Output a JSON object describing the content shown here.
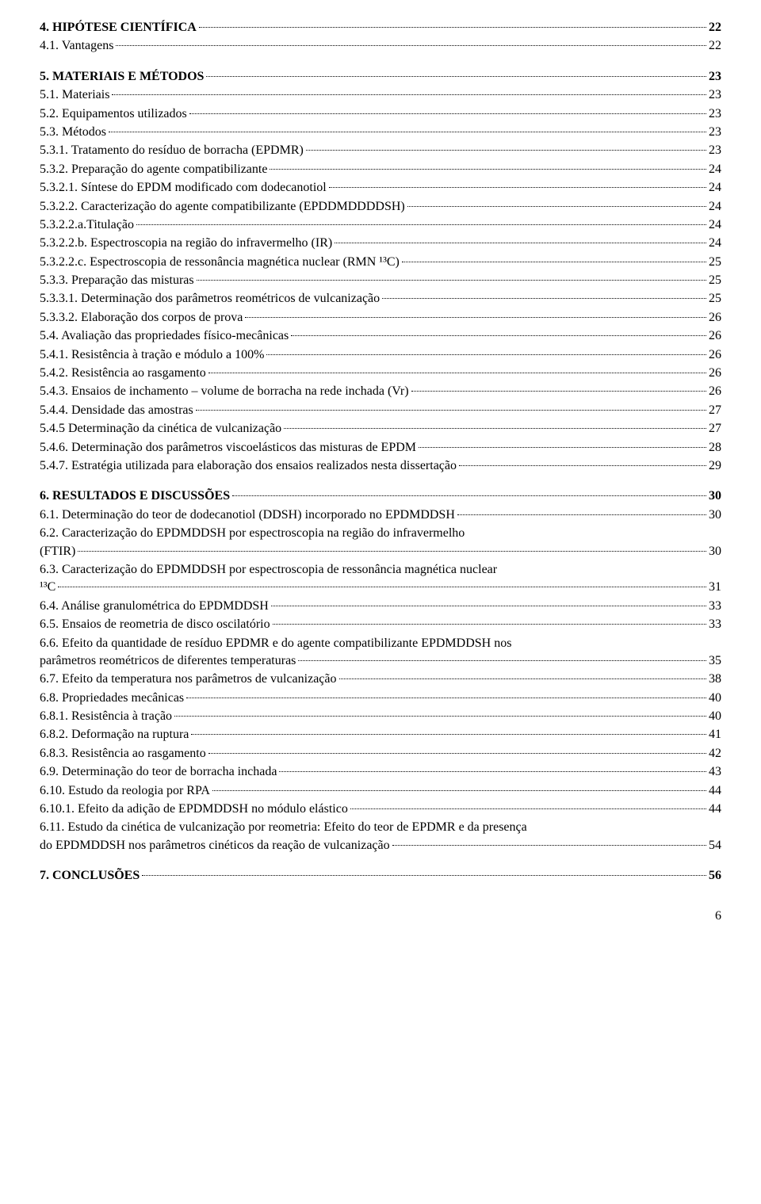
{
  "toc": {
    "s4": {
      "label": "4. HIPÓTESE CIENTÍFICA",
      "page": "22",
      "bold": true
    },
    "s4_1": {
      "label": "4.1. Vantagens",
      "page": "22"
    },
    "s5": {
      "label": "5. MATERIAIS E MÉTODOS",
      "page": "23",
      "bold": true
    },
    "s5_1": {
      "label": "5.1. Materiais",
      "page": "23"
    },
    "s5_2": {
      "label": "5.2. Equipamentos utilizados",
      "page": "23"
    },
    "s5_3": {
      "label": "5.3. Métodos",
      "page": "23"
    },
    "s5_3_1": {
      "label": "5.3.1. Tratamento do resíduo de borracha (EPDMR)",
      "page": "23"
    },
    "s5_3_2": {
      "label": "5.3.2. Preparação do agente compatibilizante",
      "page": "24"
    },
    "s5_3_2_1": {
      "label": "5.3.2.1. Síntese do EPDM modificado com dodecanotiol",
      "page": "24"
    },
    "s5_3_2_2": {
      "label": "5.3.2.2. Caracterização do agente compatibilizante (EPDDMDDDDSH)",
      "page": "24"
    },
    "s5_3_2_2a": {
      "label": "5.3.2.2.a.Titulação",
      "page": "24"
    },
    "s5_3_2_2b": {
      "label": "5.3.2.2.b. Espectroscopia na região do infravermelho (IR)",
      "page": "24"
    },
    "s5_3_2_2c": {
      "label": "5.3.2.2.c. Espectroscopia de ressonância magnética nuclear (RMN ¹³C)",
      "page": "25"
    },
    "s5_3_3": {
      "label": "5.3.3. Preparação das misturas",
      "page": "25"
    },
    "s5_3_3_1": {
      "label": "5.3.3.1. Determinação dos parâmetros reométricos de vulcanização",
      "page": "25"
    },
    "s5_3_3_2": {
      "label": "5.3.3.2. Elaboração dos corpos de prova",
      "page": "26"
    },
    "s5_4": {
      "label": "5.4. Avaliação das propriedades físico-mecânicas",
      "page": "26"
    },
    "s5_4_1": {
      "label": "5.4.1. Resistência à tração e módulo a 100%",
      "page": "26"
    },
    "s5_4_2": {
      "label": "5.4.2. Resistência ao rasgamento",
      "page": "26"
    },
    "s5_4_3": {
      "label": "5.4.3. Ensaios de inchamento – volume de borracha na rede inchada (Vr)",
      "page": " 26"
    },
    "s5_4_4": {
      "label": "5.4.4. Densidade das amostras",
      "page": "27"
    },
    "s5_4_5": {
      "label": "5.4.5 Determinação da cinética de vulcanização",
      "page": "27"
    },
    "s5_4_6": {
      "label": "5.4.6. Determinação dos parâmetros viscoelásticos das misturas de EPDM",
      "page": "28"
    },
    "s5_4_7": {
      "label": "5.4.7. Estratégia utilizada para elaboração dos ensaios realizados nesta dissertação",
      "page": "29"
    },
    "s6": {
      "label": "6. RESULTADOS E DISCUSSÕES",
      "page": "30",
      "bold": true
    },
    "s6_1": {
      "label": "6.1. Determinação do teor de dodecanotiol (DDSH) incorporado no EPDMDDSH",
      "page": "30"
    },
    "s6_2": {
      "first": "6.2. Caracterização do EPDMDDSH por espectroscopia na região do infravermelho",
      "last": "(FTIR)",
      "page": "30",
      "multi": true
    },
    "s6_3": {
      "first": "6.3. Caracterização do EPDMDDSH por espectroscopia de ressonância magnética nuclear",
      "last": "¹³C",
      "page": "31",
      "multi": true
    },
    "s6_4": {
      "label": "6.4. Análise granulométrica do EPDMDDSH",
      "page": "33"
    },
    "s6_5": {
      "label": "6.5. Ensaios de reometria de disco oscilatório",
      "page": "33"
    },
    "s6_6": {
      "first": "6.6. Efeito da quantidade de resíduo EPDMR e do agente compatibilizante EPDMDDSH nos",
      "last": "parâmetros reométricos de diferentes temperaturas",
      "page": "35",
      "multi": true
    },
    "s6_7": {
      "label": "6.7. Efeito da temperatura nos parâmetros de vulcanização",
      "page": "38"
    },
    "s6_8": {
      "label": "6.8. Propriedades mecânicas",
      "page": "40"
    },
    "s6_8_1": {
      "label": "6.8.1. Resistência à tração",
      "page": "40"
    },
    "s6_8_2": {
      "label": "6.8.2. Deformação na ruptura",
      "page": "41"
    },
    "s6_8_3": {
      "label": "6.8.3. Resistência ao rasgamento",
      "page": "42"
    },
    "s6_9": {
      "label": "6.9. Determinação do teor de borracha inchada",
      "page": "43"
    },
    "s6_10": {
      "label": "6.10. Estudo da reologia por RPA",
      "page": "44"
    },
    "s6_10_1": {
      "label": "6.10.1. Efeito da adição de EPDMDDSH no módulo elástico",
      "page": "44"
    },
    "s6_11": {
      "first": "6.11. Estudo da cinética de vulcanização por reometria: Efeito do teor de EPDMR e da presença",
      "last": "do EPDMDDSH nos parâmetros cinéticos da reação de vulcanização",
      "page": "54",
      "multi": true
    },
    "s7": {
      "label": "7. CONCLUSÕES",
      "page": "56",
      "bold": true
    }
  },
  "order": [
    "s4",
    "s4_1",
    "GAP",
    "s5",
    "s5_1",
    "s5_2",
    "s5_3",
    "s5_3_1",
    "s5_3_2",
    "s5_3_2_1",
    "s5_3_2_2",
    "s5_3_2_2a",
    "s5_3_2_2b",
    "s5_3_2_2c",
    "s5_3_3",
    "s5_3_3_1",
    "s5_3_3_2",
    "s5_4",
    "s5_4_1",
    "s5_4_2",
    "s5_4_3",
    "s5_4_4",
    "s5_4_5",
    "s5_4_6",
    "s5_4_7",
    "GAP",
    "s6",
    "s6_1",
    "s6_2",
    "s6_3",
    "s6_4",
    "s6_5",
    "s6_6",
    "s6_7",
    "s6_8",
    "s6_8_1",
    "s6_8_2",
    "s6_8_3",
    "s6_9",
    "s6_10",
    "s6_10_1",
    "s6_11",
    "GAP",
    "s7"
  ],
  "page_num": "6"
}
